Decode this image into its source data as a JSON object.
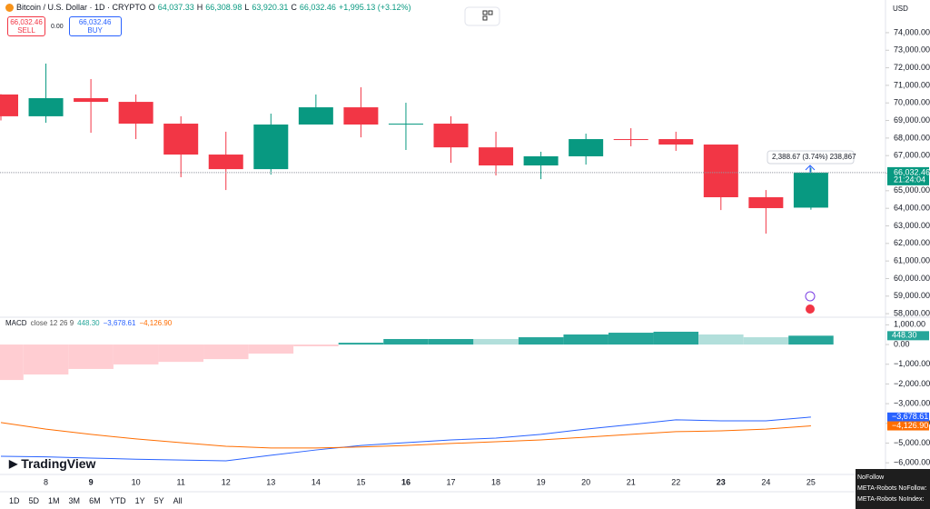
{
  "ui": {
    "header": {
      "title": "Bitcoin / U.S. Dollar · 1D · CRYPTO",
      "o": "O",
      "open": "64,037.33",
      "h": "H",
      "high": "66,308.98",
      "l": "L",
      "low": "63,920.31",
      "c": "C",
      "close": "66,032.46",
      "change": "+1,995.13 (+3.12%)"
    },
    "trade": {
      "sell_price": "66,032.46",
      "sell": "SELL",
      "spread": "0.00",
      "buy_price": "66,032.46",
      "buy": "BUY"
    },
    "currency": "USD",
    "logo": "TradingView",
    "ranges": [
      "1D",
      "5D",
      "1M",
      "3M",
      "6M",
      "YTD",
      "1Y",
      "5Y",
      "All"
    ],
    "popup": [
      "NoFollow",
      "META-Robots NoFollow:",
      "META-Robots NoIndex:"
    ]
  },
  "chart_data": [
    {
      "type": "candlestick",
      "categories": [
        null,
        "8",
        "9",
        "10",
        "11",
        "12",
        "13",
        "14",
        "15",
        "16",
        "17",
        "18",
        "19",
        "20",
        "21",
        "22",
        "23",
        "24",
        "25"
      ],
      "open": [
        70480,
        69240,
        70270,
        70060,
        68820,
        67060,
        66230,
        68770,
        69750,
        68770,
        68820,
        67470,
        66440,
        66960,
        67940,
        67940,
        67630,
        64630,
        64037.33
      ],
      "high": [
        70500,
        72240,
        71360,
        70480,
        69240,
        68360,
        69390,
        70480,
        70890,
        70010,
        69240,
        68360,
        67220,
        68250,
        68560,
        68360,
        67630,
        65040,
        66308.98
      ],
      "low": [
        69000,
        68870,
        68300,
        67940,
        65770,
        65040,
        65920,
        68770,
        68040,
        67320,
        66590,
        65870,
        65660,
        66490,
        67530,
        67270,
        63900,
        62560,
        63920.31
      ],
      "close": [
        69240,
        70270,
        70060,
        68820,
        67060,
        66230,
        68770,
        69750,
        68770,
        68820,
        67470,
        66440,
        66960,
        67940,
        67900,
        67630,
        64630,
        64010,
        66032.46
      ],
      "up_color": "#089981",
      "down_color": "#f23645",
      "ylim": [
        57850,
        75860
      ],
      "yticks": [
        {
          "value": 58000,
          "label": "58,000.00"
        },
        {
          "value": 59000,
          "label": "59,000.00"
        },
        {
          "value": 60000,
          "label": "60,000.00"
        },
        {
          "value": 61000,
          "label": "61,000.00"
        },
        {
          "value": 62000,
          "label": "62,000.00"
        },
        {
          "value": 63000,
          "label": "63,000.00"
        },
        {
          "value": 64000,
          "label": "64,000.00"
        },
        {
          "value": 65000,
          "label": "65,000.00"
        },
        {
          "value": 66000,
          "label": "66,000.00"
        },
        {
          "value": 67000,
          "label": "67,000.00"
        },
        {
          "value": 68000,
          "label": "68,000.00"
        },
        {
          "value": 69000,
          "label": "69,000.00"
        },
        {
          "value": 70000,
          "label": "70,000.00"
        },
        {
          "value": 71000,
          "label": "71,000.00"
        },
        {
          "value": 72000,
          "label": "72,000.00"
        },
        {
          "value": 73000,
          "label": "73,000.00"
        },
        {
          "value": 74000,
          "label": "74,000.00"
        }
      ],
      "last_price": {
        "value": 66032.46,
        "label": "66,032.46"
      },
      "countdown": "21:24:04",
      "annotation": "2,388.67 (3.74%) 238,867"
    },
    {
      "type": "macd",
      "title": "MACD",
      "params": "close 12 26 9",
      "categories": [
        null,
        "8",
        "9",
        "10",
        "11",
        "12",
        "13",
        "14",
        "15",
        "16",
        "17",
        "18",
        "19",
        "20",
        "21",
        "22",
        "23",
        "24",
        "25"
      ],
      "series": [
        {
          "name": "Histogram",
          "values": [
            -1800,
            -1520,
            -1240,
            -1010,
            -880,
            -740,
            -460,
            -90,
            90,
            280,
            280,
            280,
            370,
            510,
            600,
            650,
            510,
            370,
            448.3
          ],
          "value_labels": [
            null,
            null,
            null,
            null,
            null,
            null,
            null,
            null,
            null,
            null,
            null,
            null,
            null,
            null,
            null,
            null,
            null,
            null,
            "448.30"
          ],
          "colors": [
            "#ffcdd2",
            "#ffcdd2",
            "#ffcdd2",
            "#ffcdd2",
            "#ffcdd2",
            "#ffcdd2",
            "#ffcdd2",
            "#ffcdd2",
            "#26a69a",
            "#26a69a",
            "#26a69a",
            "#b2dfdb",
            "#26a69a",
            "#26a69a",
            "#26a69a",
            "#26a69a",
            "#b2dfdb",
            "#b2dfdb",
            "#26a69a"
          ]
        },
        {
          "name": "MACD",
          "color": "#2962ff",
          "values": [
            -5670,
            -5700,
            -5760,
            -5820,
            -5860,
            -5900,
            -5620,
            -5350,
            -5120,
            -4980,
            -4840,
            -4750,
            -4560,
            -4290,
            -4060,
            -3820,
            -3870,
            -3870,
            -3678.61
          ],
          "value_labels": [
            null,
            null,
            null,
            null,
            null,
            null,
            null,
            null,
            null,
            null,
            null,
            null,
            null,
            null,
            null,
            null,
            null,
            null,
            "−3,678.61"
          ]
        },
        {
          "name": "Signal",
          "color": "#ff6d00",
          "values": [
            -3960,
            -4290,
            -4560,
            -4790,
            -4980,
            -5160,
            -5250,
            -5250,
            -5200,
            -5120,
            -5020,
            -4930,
            -4840,
            -4700,
            -4560,
            -4420,
            -4380,
            -4290,
            -4126.9
          ],
          "value_labels": [
            null,
            null,
            null,
            null,
            null,
            null,
            null,
            null,
            null,
            null,
            null,
            null,
            null,
            null,
            null,
            null,
            null,
            null,
            "−4,126.90"
          ]
        }
      ],
      "ylim": [
        -6500,
        1340
      ],
      "yticks": [
        {
          "value": 1000,
          "label": "1,000.00"
        },
        {
          "value": 0,
          "label": "0.00"
        },
        {
          "value": -1000,
          "label": "−1,000.00"
        },
        {
          "value": -2000,
          "label": "−2,000.00"
        },
        {
          "value": -3000,
          "label": "−3,000.00"
        },
        {
          "value": -4000,
          "label": "−4,000.00"
        },
        {
          "value": -5000,
          "label": "−5,000.00"
        },
        {
          "value": -6000,
          "label": "−6,000.00"
        }
      ]
    }
  ]
}
